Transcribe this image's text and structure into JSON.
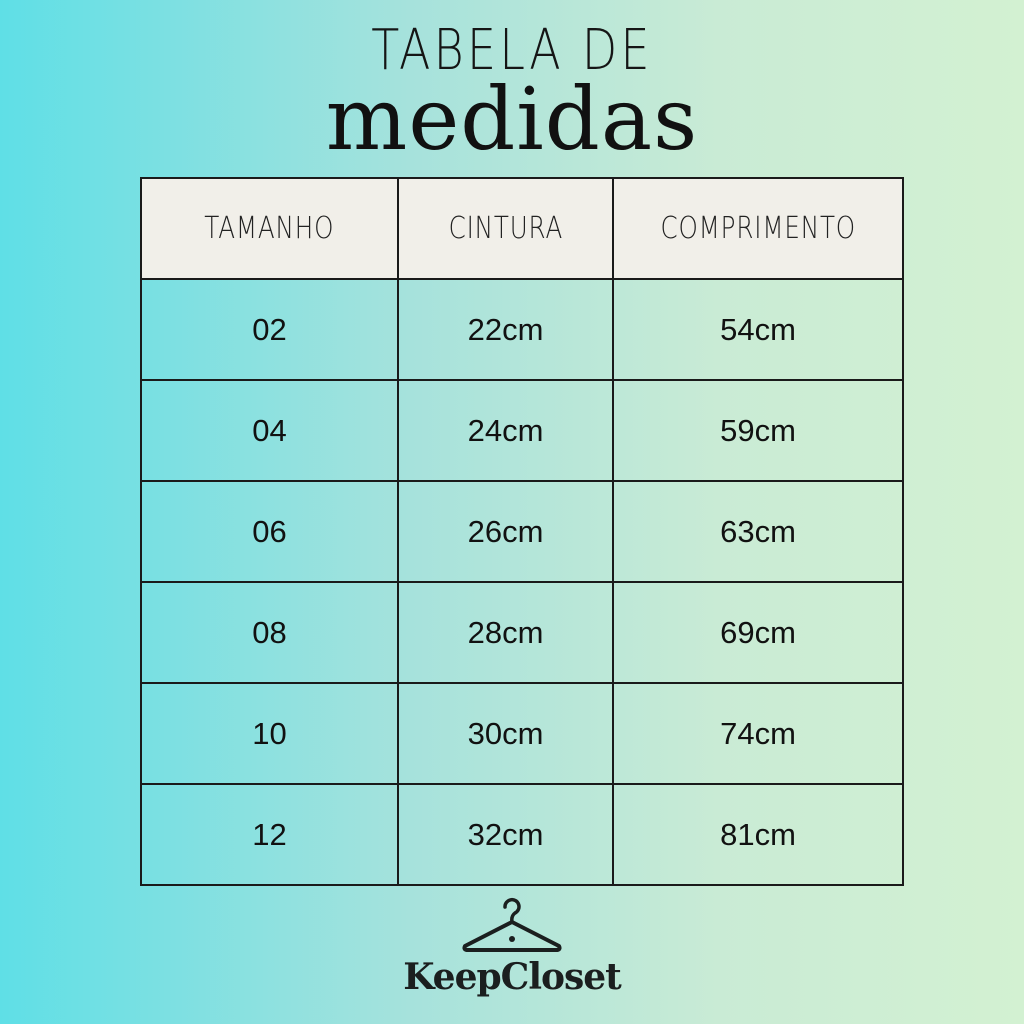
{
  "title_line1": "TABELA DE",
  "title_line2": "medidas",
  "table": {
    "headers": [
      "TAMANHO",
      "CINTURA",
      "COMPRIMENTO"
    ],
    "rows": [
      [
        "02",
        "22cm",
        "54cm"
      ],
      [
        "04",
        "24cm",
        "59cm"
      ],
      [
        "06",
        "26cm",
        "63cm"
      ],
      [
        "08",
        "28cm",
        "69cm"
      ],
      [
        "10",
        "30cm",
        "74cm"
      ],
      [
        "12",
        "32cm",
        "81cm"
      ]
    ]
  },
  "logo": {
    "icon": "hanger-icon",
    "text": "KeepCloset"
  },
  "colors": {
    "gradient_left": "#5fdfe6",
    "gradient_right": "#d3f1d2",
    "header_bg": "#f1efe9"
  }
}
